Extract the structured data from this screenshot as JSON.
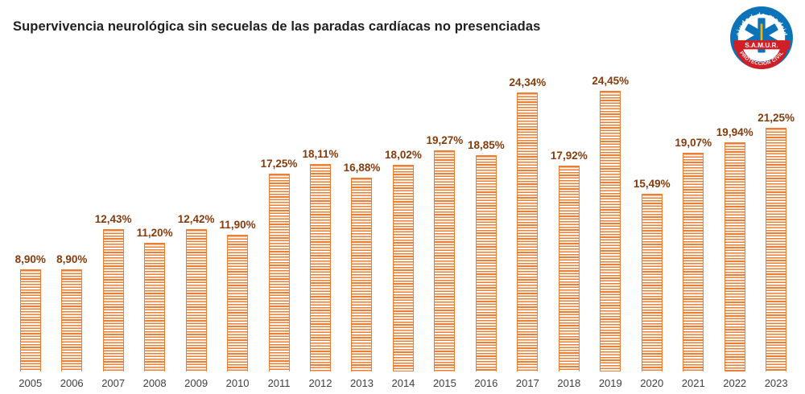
{
  "title": "Supervivencia neurológica sin secuelas de las paradas cardíacas no presenciadas",
  "logo": {
    "top_text": "ciudad de madrid",
    "middle_text": "S.A.M.U.R.",
    "bottom_text": "PROTECCIÓN CIVIL"
  },
  "chart_data": {
    "type": "bar",
    "title": "Supervivencia neurológica sin secuelas de las paradas cardíacas no presenciadas",
    "categories": [
      "2005",
      "2006",
      "2007",
      "2008",
      "2009",
      "2010",
      "2011",
      "2012",
      "2013",
      "2014",
      "2015",
      "2016",
      "2017",
      "2018",
      "2019",
      "2020",
      "2021",
      "2022",
      "2023"
    ],
    "values": [
      8.9,
      8.9,
      12.43,
      11.2,
      12.42,
      11.9,
      17.25,
      18.11,
      16.88,
      18.02,
      19.27,
      18.85,
      24.34,
      17.92,
      24.45,
      15.49,
      19.07,
      19.94,
      21.25
    ],
    "labels": [
      "8,90%",
      "8,90%",
      "12,43%",
      "11,20%",
      "12,42%",
      "11,90%",
      "17,25%",
      "18,11%",
      "16,88%",
      "18,02%",
      "19,27%",
      "18,85%",
      "24,34%",
      "17,92%",
      "24,45%",
      "15,49%",
      "19,07%",
      "19,94%",
      "21,25%"
    ],
    "xlabel": "",
    "ylabel": "",
    "ylim": [
      0,
      26
    ],
    "grid": false,
    "legend": "none",
    "bar_color": "#ED7D31",
    "bar_pattern": "horizontal-stripes",
    "label_color": "#843C0C"
  }
}
